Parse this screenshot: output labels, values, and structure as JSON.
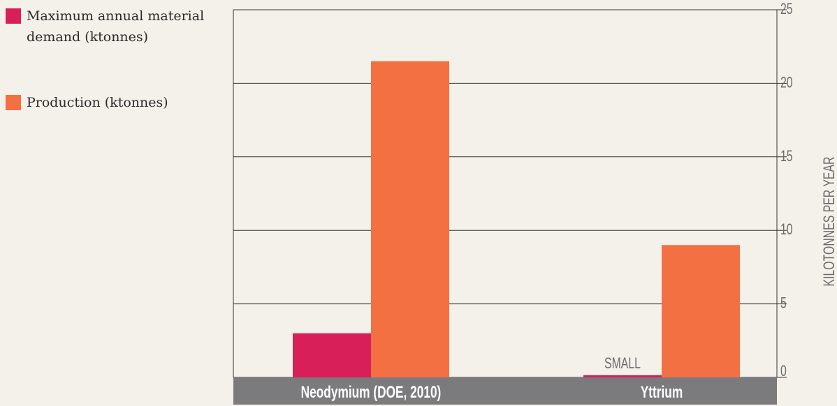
{
  "chart_data": {
    "type": "bar",
    "categories": [
      "Neodymium (DOE, 2010)",
      "Yttrium"
    ],
    "series": [
      {
        "name": "Maximum annual material demand (ktonnes)",
        "color": "#d81f5a",
        "values": [
          3,
          0.15
        ]
      },
      {
        "name": "Production (ktonnes)",
        "color": "#f37043",
        "values": [
          21.5,
          9
        ]
      }
    ],
    "annotations": [
      {
        "category": "Yttrium",
        "series": 0,
        "text": "SMALL"
      }
    ],
    "ylabel": "KILOTONNES PER YEAR",
    "ylim": [
      0,
      25
    ],
    "yticks": [
      0,
      5,
      10,
      15,
      20,
      25
    ],
    "grid": true,
    "legend_position": "top-left"
  },
  "legend": [
    {
      "label": "Maximum annual material demand (ktonnes)",
      "color": "#d81f5a"
    },
    {
      "label": "Production (ktonnes)",
      "color": "#f37043"
    }
  ]
}
